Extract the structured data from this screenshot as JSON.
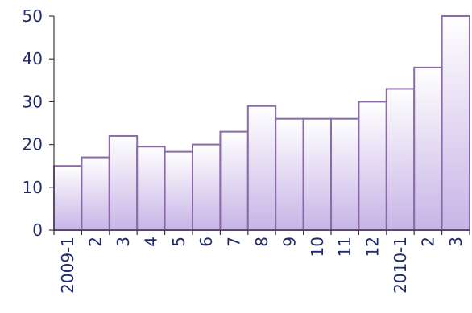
{
  "chart_data": {
    "type": "bar",
    "categories": [
      "2009-1",
      "2",
      "3",
      "4",
      "5",
      "6",
      "7",
      "8",
      "9",
      "10",
      "11",
      "12",
      "2010-1",
      "2",
      "3"
    ],
    "values": [
      15,
      17,
      22,
      19.5,
      18.3,
      20,
      23,
      29,
      26,
      26,
      26,
      30,
      33,
      38,
      50
    ],
    "ylim": [
      0,
      50
    ],
    "yticks": [
      0,
      10,
      20,
      30,
      40,
      50
    ],
    "title": "",
    "xlabel": "",
    "ylabel": "",
    "grid": false,
    "legend": "none",
    "colors": {
      "bar_top": "#ffffff",
      "bar_bottom": "#c7b4e6",
      "bar_stroke": "#8a6aa9",
      "axis": "#3a3a3a",
      "text": "#1f2a6e"
    }
  }
}
